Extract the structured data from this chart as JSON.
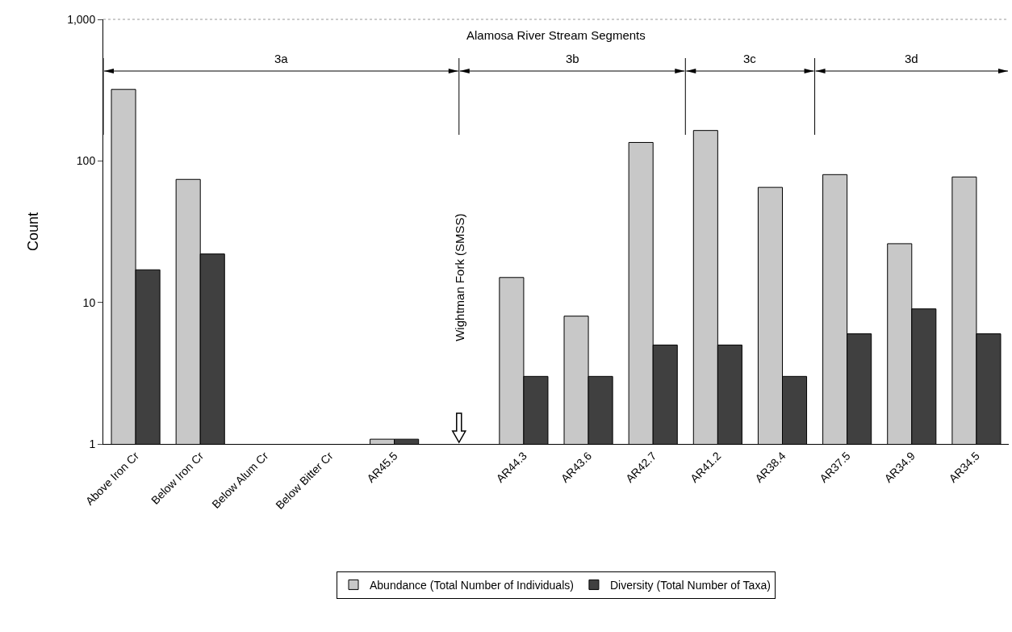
{
  "chart_data": {
    "type": "bar",
    "ylabel": "Count",
    "categories": [
      "Above Iron Cr",
      "Below Iron Cr",
      "Below Alum Cr",
      "Below Bitter Cr",
      "AR45.5",
      null,
      "AR44.3",
      "AR43.6",
      "AR42.7",
      "AR41.2",
      "AR38.4",
      "AR37.5",
      "AR34.9",
      "AR34.5"
    ],
    "series": [
      {
        "name": "Abundance (Total Number of Individuals)",
        "color": "#c8c8c8",
        "values": [
          320,
          74,
          null,
          null,
          1.08,
          null,
          15,
          8,
          135,
          164,
          65,
          80,
          26,
          77
        ]
      },
      {
        "name": "Diversity (Total Number of Taxa)",
        "color": "#404040",
        "values": [
          17,
          22,
          null,
          null,
          1.08,
          null,
          3,
          3,
          5,
          5,
          3,
          6,
          9,
          6
        ]
      }
    ],
    "log": "y",
    "ylim": [
      1,
      1000
    ],
    "yticks": [
      1,
      10,
      100,
      {
        "value": 1000,
        "label": "1,000"
      }
    ],
    "grid": false,
    "legend": "bottom",
    "annotations": [
      "Alamosa River Stream Segments",
      "3a",
      "3b",
      "3c",
      "3d",
      "Wightman Fork (SMSS)"
    ]
  }
}
